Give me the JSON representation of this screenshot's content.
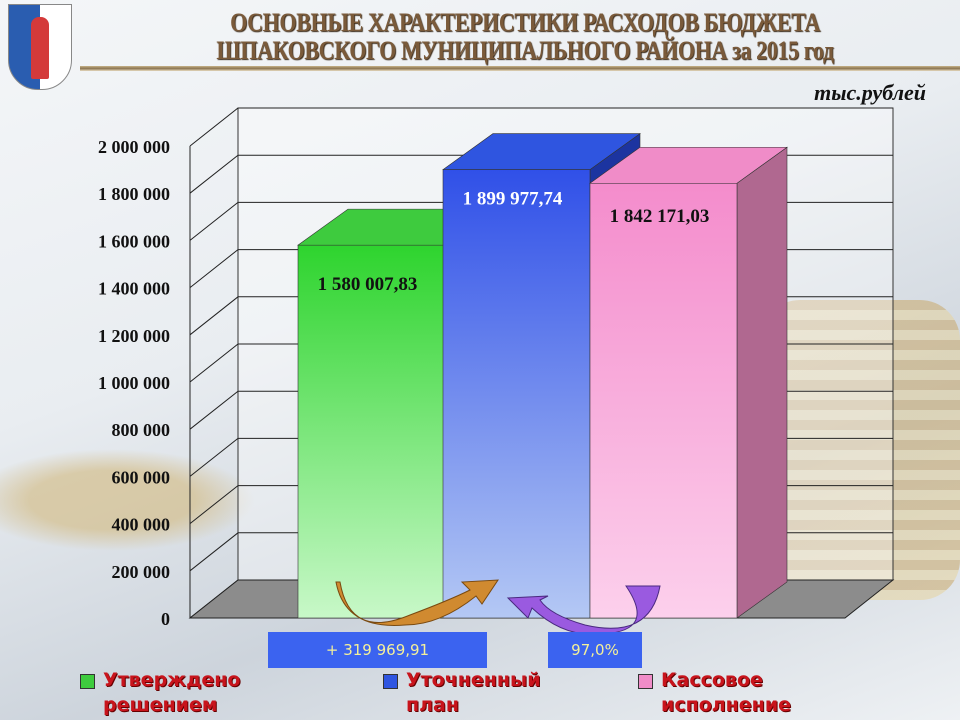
{
  "header": {
    "title_line1": "ОСНОВНЫЕ ХАРАКТЕРИСТИКИ РАСХОДОВ БЮДЖЕТА",
    "title_line2": "ШПАКОВСКОГО МУНИЦИПАЛЬНОГО РАЙОНА за 2015 год",
    "units": "тыс.рублей"
  },
  "chart_data": {
    "type": "bar",
    "categories": [
      "Утверждено решением",
      "Уточненный план",
      "Кассовое исполнение"
    ],
    "values": [
      1580007.83,
      1899977.74,
      1842171.03
    ],
    "data_labels": [
      "1 580 007,83",
      "1 899 977,74",
      "1 842 171,03"
    ],
    "colors": [
      "#3ecb3e",
      "#2f55e0",
      "#f08cc8"
    ],
    "ylim": [
      0,
      2000000
    ],
    "yticks": [
      0,
      200000,
      400000,
      600000,
      800000,
      1000000,
      1200000,
      1400000,
      1600000,
      1800000,
      2000000
    ],
    "ytick_labels": [
      "0",
      "200 000",
      "400 000",
      "600 000",
      "800 000",
      "1 000 000",
      "1 200 000",
      "1 400 000",
      "1 600 000",
      "1 800 000",
      "2 000 000"
    ],
    "grid": true,
    "legend_position": "bottom",
    "annotations": [
      "+ 319 969,91",
      "97,0%"
    ]
  }
}
